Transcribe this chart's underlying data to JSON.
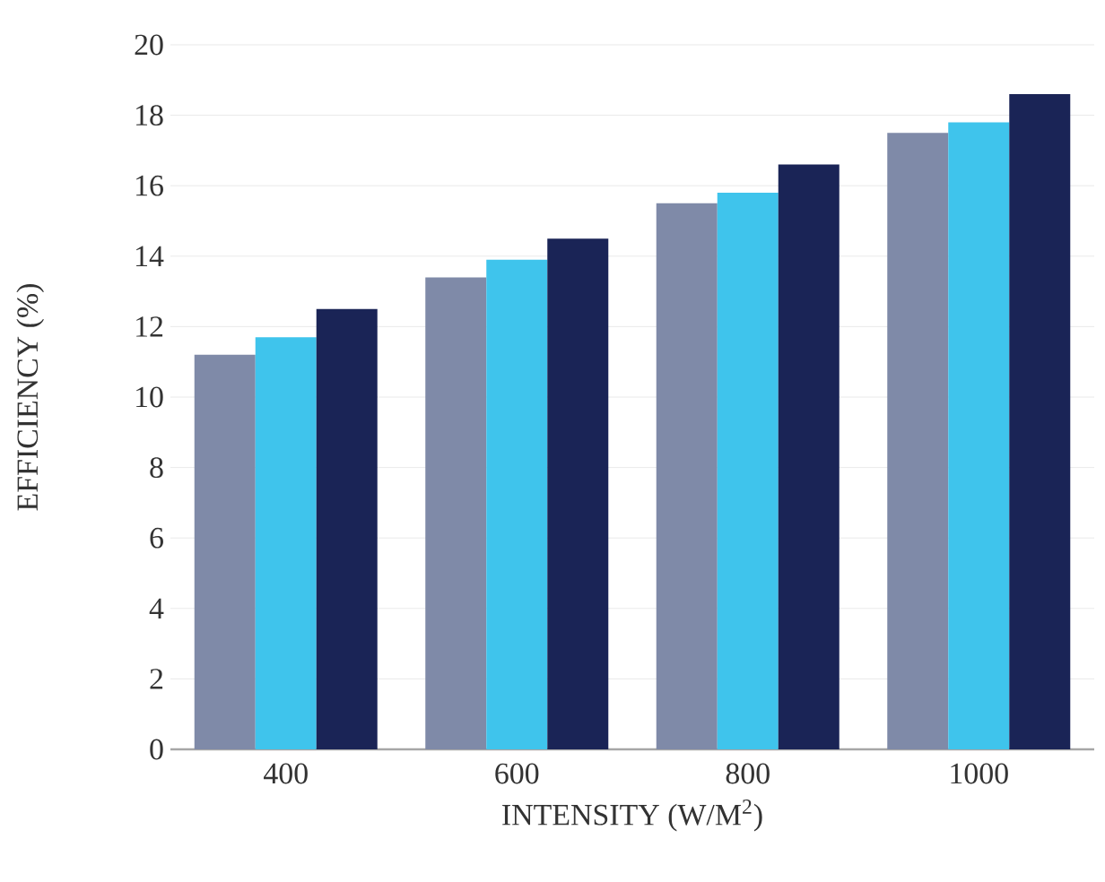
{
  "chart_data": {
    "type": "bar",
    "xlabel": "INTENSITY (W/M$^{2}$)",
    "ylabel": "EFFICIENCY (%)",
    "categories": [
      "400",
      "600",
      "800",
      "1000"
    ],
    "series": [
      {
        "color": "#7f8aa8",
        "values": [
          11.2,
          13.4,
          15.5,
          17.5
        ]
      },
      {
        "color": "#3fc4ec",
        "values": [
          11.7,
          13.9,
          15.8,
          17.8
        ]
      },
      {
        "color": "#1a2456",
        "values": [
          12.5,
          14.5,
          16.6,
          18.6
        ]
      }
    ],
    "ylim": [
      0,
      20
    ],
    "yticks": [
      0,
      2,
      4,
      6,
      8,
      10,
      12,
      14,
      16,
      18,
      20
    ],
    "grid": "y"
  }
}
